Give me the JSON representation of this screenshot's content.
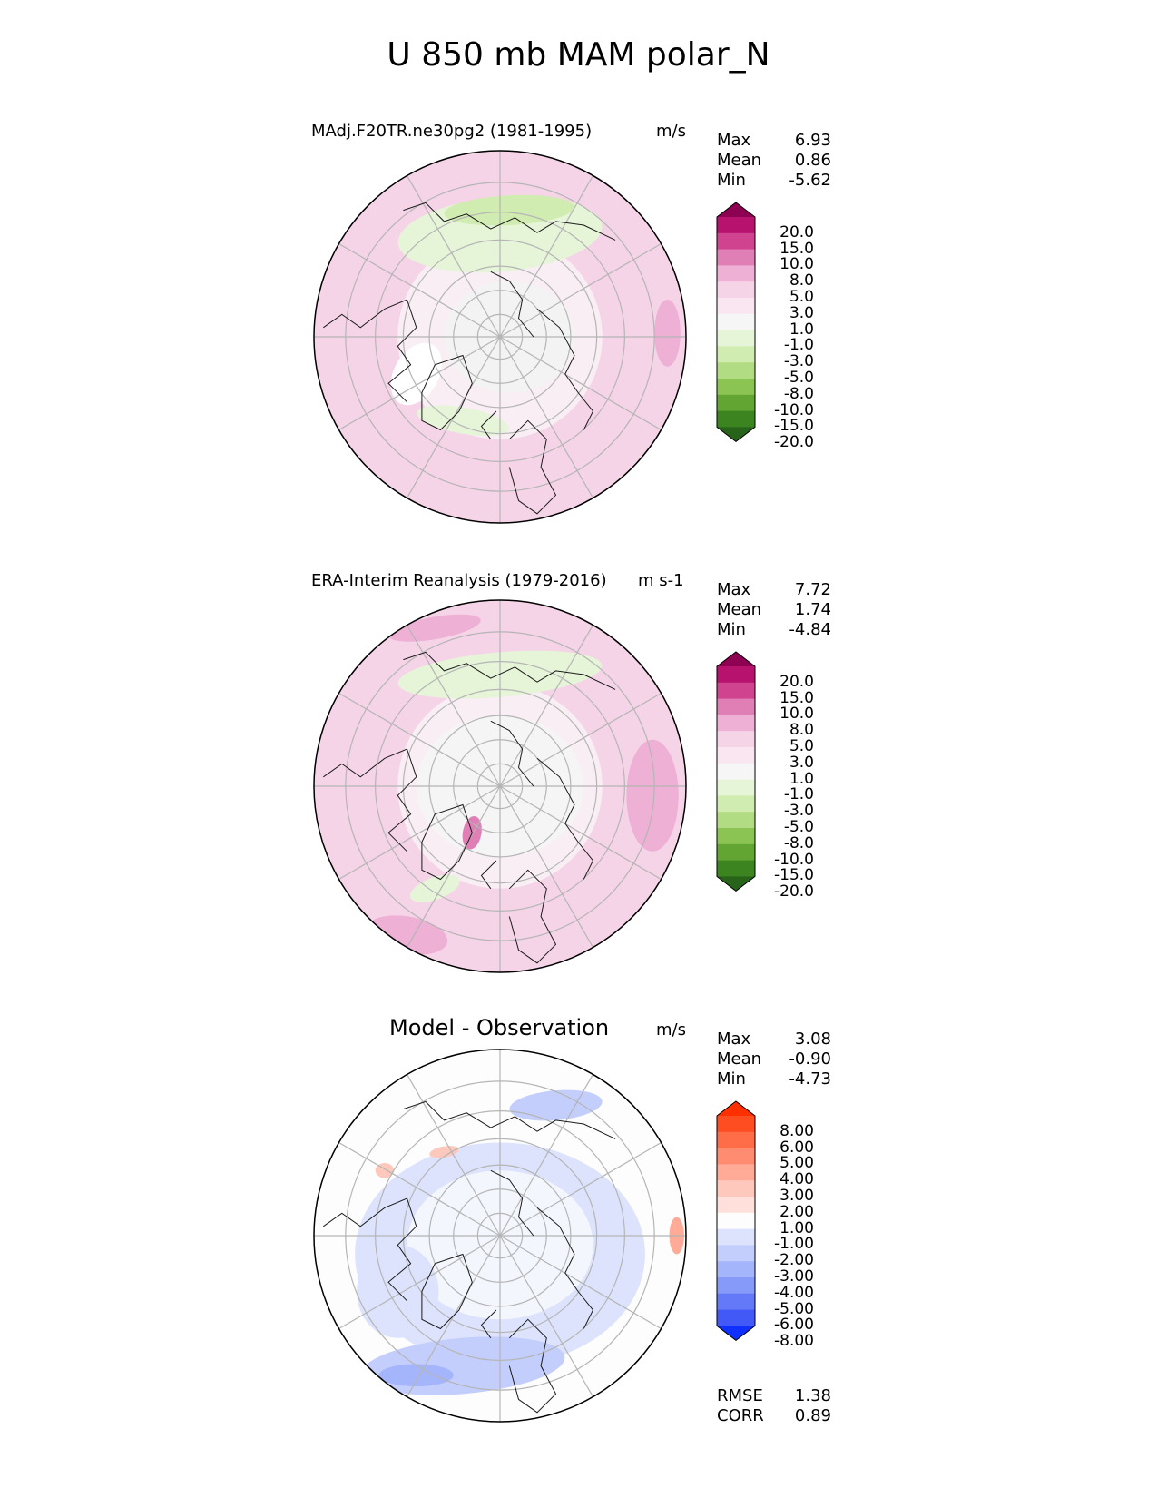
{
  "figure": {
    "title": "U 850 mb MAM polar_N"
  },
  "colors": {
    "land_outline": "#1a1a1a",
    "grid": "#b5b5b5",
    "border": "#000000"
  },
  "chart_data": [
    {
      "type": "heatmap",
      "projection": "north-polar-stereographic",
      "title": "MAdj.F20TR.ne30pg2 (1981-1995)",
      "units": "m/s",
      "stats": {
        "max": "6.93",
        "mean": "0.86",
        "min": "-5.62"
      },
      "colorbar": {
        "levels": [
          "20.0",
          "15.0",
          "10.0",
          "8.0",
          "5.0",
          "3.0",
          "1.0",
          "-1.0",
          "-3.0",
          "-5.0",
          "-8.0",
          "-10.0",
          "-15.0",
          "-20.0"
        ],
        "colors": [
          "#8e0152",
          "#b8126f",
          "#d0448f",
          "#e07fb6",
          "#eeb1d5",
          "#f6d4e8",
          "#fae6f1",
          "#f6f6f6",
          "#e6f4d8",
          "#d1ecb0",
          "#b1dc84",
          "#8cc453",
          "#63a532",
          "#3c8420",
          "#276419"
        ],
        "extend": "both"
      }
    },
    {
      "type": "heatmap",
      "projection": "north-polar-stereographic",
      "title": "ERA-Interim Reanalysis (1979-2016)",
      "units": "m s-1",
      "stats": {
        "max": "7.72",
        "mean": "1.74",
        "min": "-4.84"
      },
      "colorbar": {
        "levels": [
          "20.0",
          "15.0",
          "10.0",
          "8.0",
          "5.0",
          "3.0",
          "1.0",
          "-1.0",
          "-3.0",
          "-5.0",
          "-8.0",
          "-10.0",
          "-15.0",
          "-20.0"
        ],
        "colors": [
          "#8e0152",
          "#b8126f",
          "#d0448f",
          "#e07fb6",
          "#eeb1d5",
          "#f6d4e8",
          "#fae6f1",
          "#f6f6f6",
          "#e6f4d8",
          "#d1ecb0",
          "#b1dc84",
          "#8cc453",
          "#63a532",
          "#3c8420",
          "#276419"
        ],
        "extend": "both"
      }
    },
    {
      "type": "heatmap",
      "projection": "north-polar-stereographic",
      "title": "Model - Observation",
      "units": "m/s",
      "stats": {
        "max": "3.08",
        "mean": "-0.90",
        "min": "-4.73"
      },
      "metrics": {
        "rmse_label": "RMSE",
        "rmse": "1.38",
        "corr_label": "CORR",
        "corr": "0.89"
      },
      "colorbar": {
        "levels": [
          "8.00",
          "6.00",
          "5.00",
          "4.00",
          "3.00",
          "2.00",
          "1.00",
          "-1.00",
          "-2.00",
          "-3.00",
          "-4.00",
          "-5.00",
          "-6.00",
          "-8.00"
        ],
        "colors": [
          "#ff3000",
          "#ff4d22",
          "#ff6d48",
          "#ff8c70",
          "#ffab98",
          "#ffc8bc",
          "#ffe0da",
          "#fdfdfd",
          "#dde3fd",
          "#c3cefc",
          "#a5b5fb",
          "#859af9",
          "#6479f8",
          "#4258f7",
          "#1030ff"
        ],
        "extend": "both"
      }
    }
  ],
  "stat_labels": {
    "max": "Max",
    "mean": "Mean",
    "min": "Min"
  }
}
